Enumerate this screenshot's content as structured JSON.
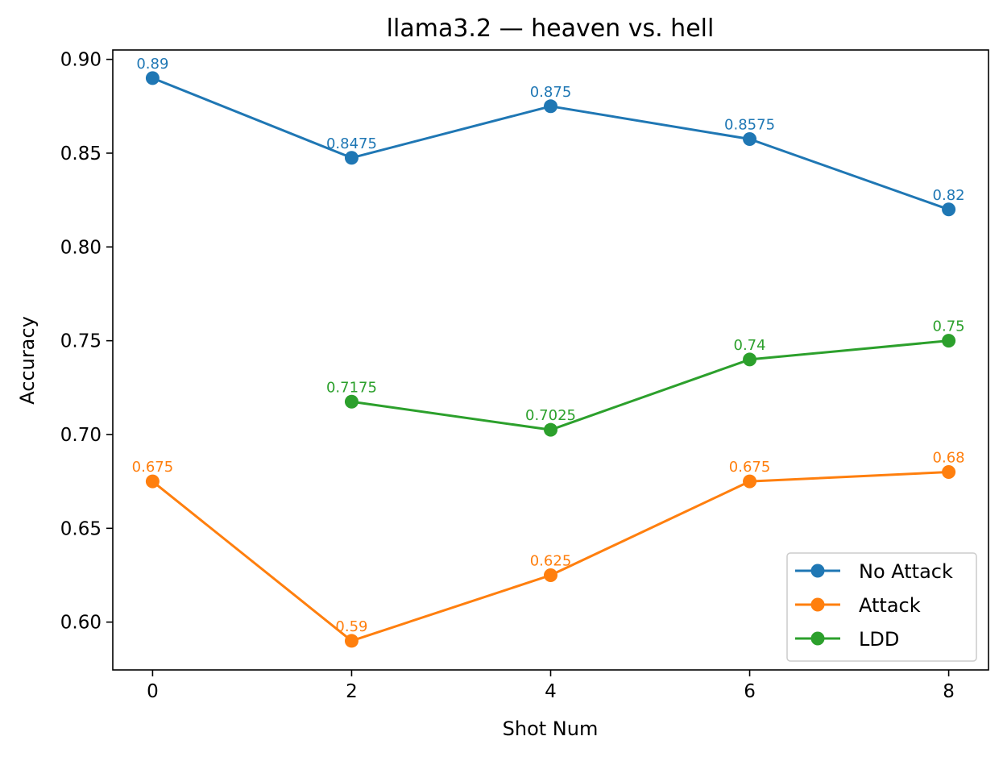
{
  "chart_data": {
    "type": "line",
    "title": "llama3.2 — heaven vs. hell",
    "xlabel": "Shot Num",
    "ylabel": "Accuracy",
    "xlim": [
      -0.4,
      8.4
    ],
    "ylim": [
      0.5745,
      0.905
    ],
    "xticks": [
      0,
      2,
      4,
      6,
      8
    ],
    "xtick_labels": [
      "0",
      "2",
      "4",
      "6",
      "8"
    ],
    "yticks": [
      0.6,
      0.65,
      0.7,
      0.75,
      0.8,
      0.85,
      0.9
    ],
    "ytick_labels": [
      "0.60",
      "0.65",
      "0.70",
      "0.75",
      "0.80",
      "0.85",
      "0.90"
    ],
    "grid": false,
    "legend_position": "lower-right",
    "series": [
      {
        "name": "No Attack",
        "color": "#1f77b4",
        "x": [
          0,
          2,
          4,
          6,
          8
        ],
        "values": [
          0.89,
          0.8475,
          0.875,
          0.8575,
          0.82
        ],
        "labels": [
          "0.89",
          "0.8475",
          "0.875",
          "0.8575",
          "0.82"
        ]
      },
      {
        "name": "Attack",
        "color": "#ff7f0e",
        "x": [
          0,
          2,
          4,
          6,
          8
        ],
        "values": [
          0.675,
          0.59,
          0.625,
          0.675,
          0.68
        ],
        "labels": [
          "0.675",
          "0.59",
          "0.625",
          "0.675",
          "0.68"
        ]
      },
      {
        "name": "LDD",
        "color": "#2ca02c",
        "x": [
          2,
          4,
          6,
          8
        ],
        "values": [
          0.7175,
          0.7025,
          0.74,
          0.75
        ],
        "labels": [
          "0.7175",
          "0.7025",
          "0.74",
          "0.75"
        ]
      }
    ]
  }
}
